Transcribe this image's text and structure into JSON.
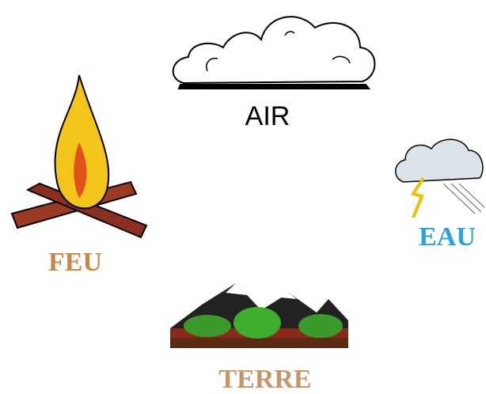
{
  "elements": {
    "air": {
      "label": "AIR"
    },
    "fire": {
      "label": "FEU"
    },
    "water": {
      "label": "EAU"
    },
    "earth": {
      "label": "TERRE"
    }
  }
}
